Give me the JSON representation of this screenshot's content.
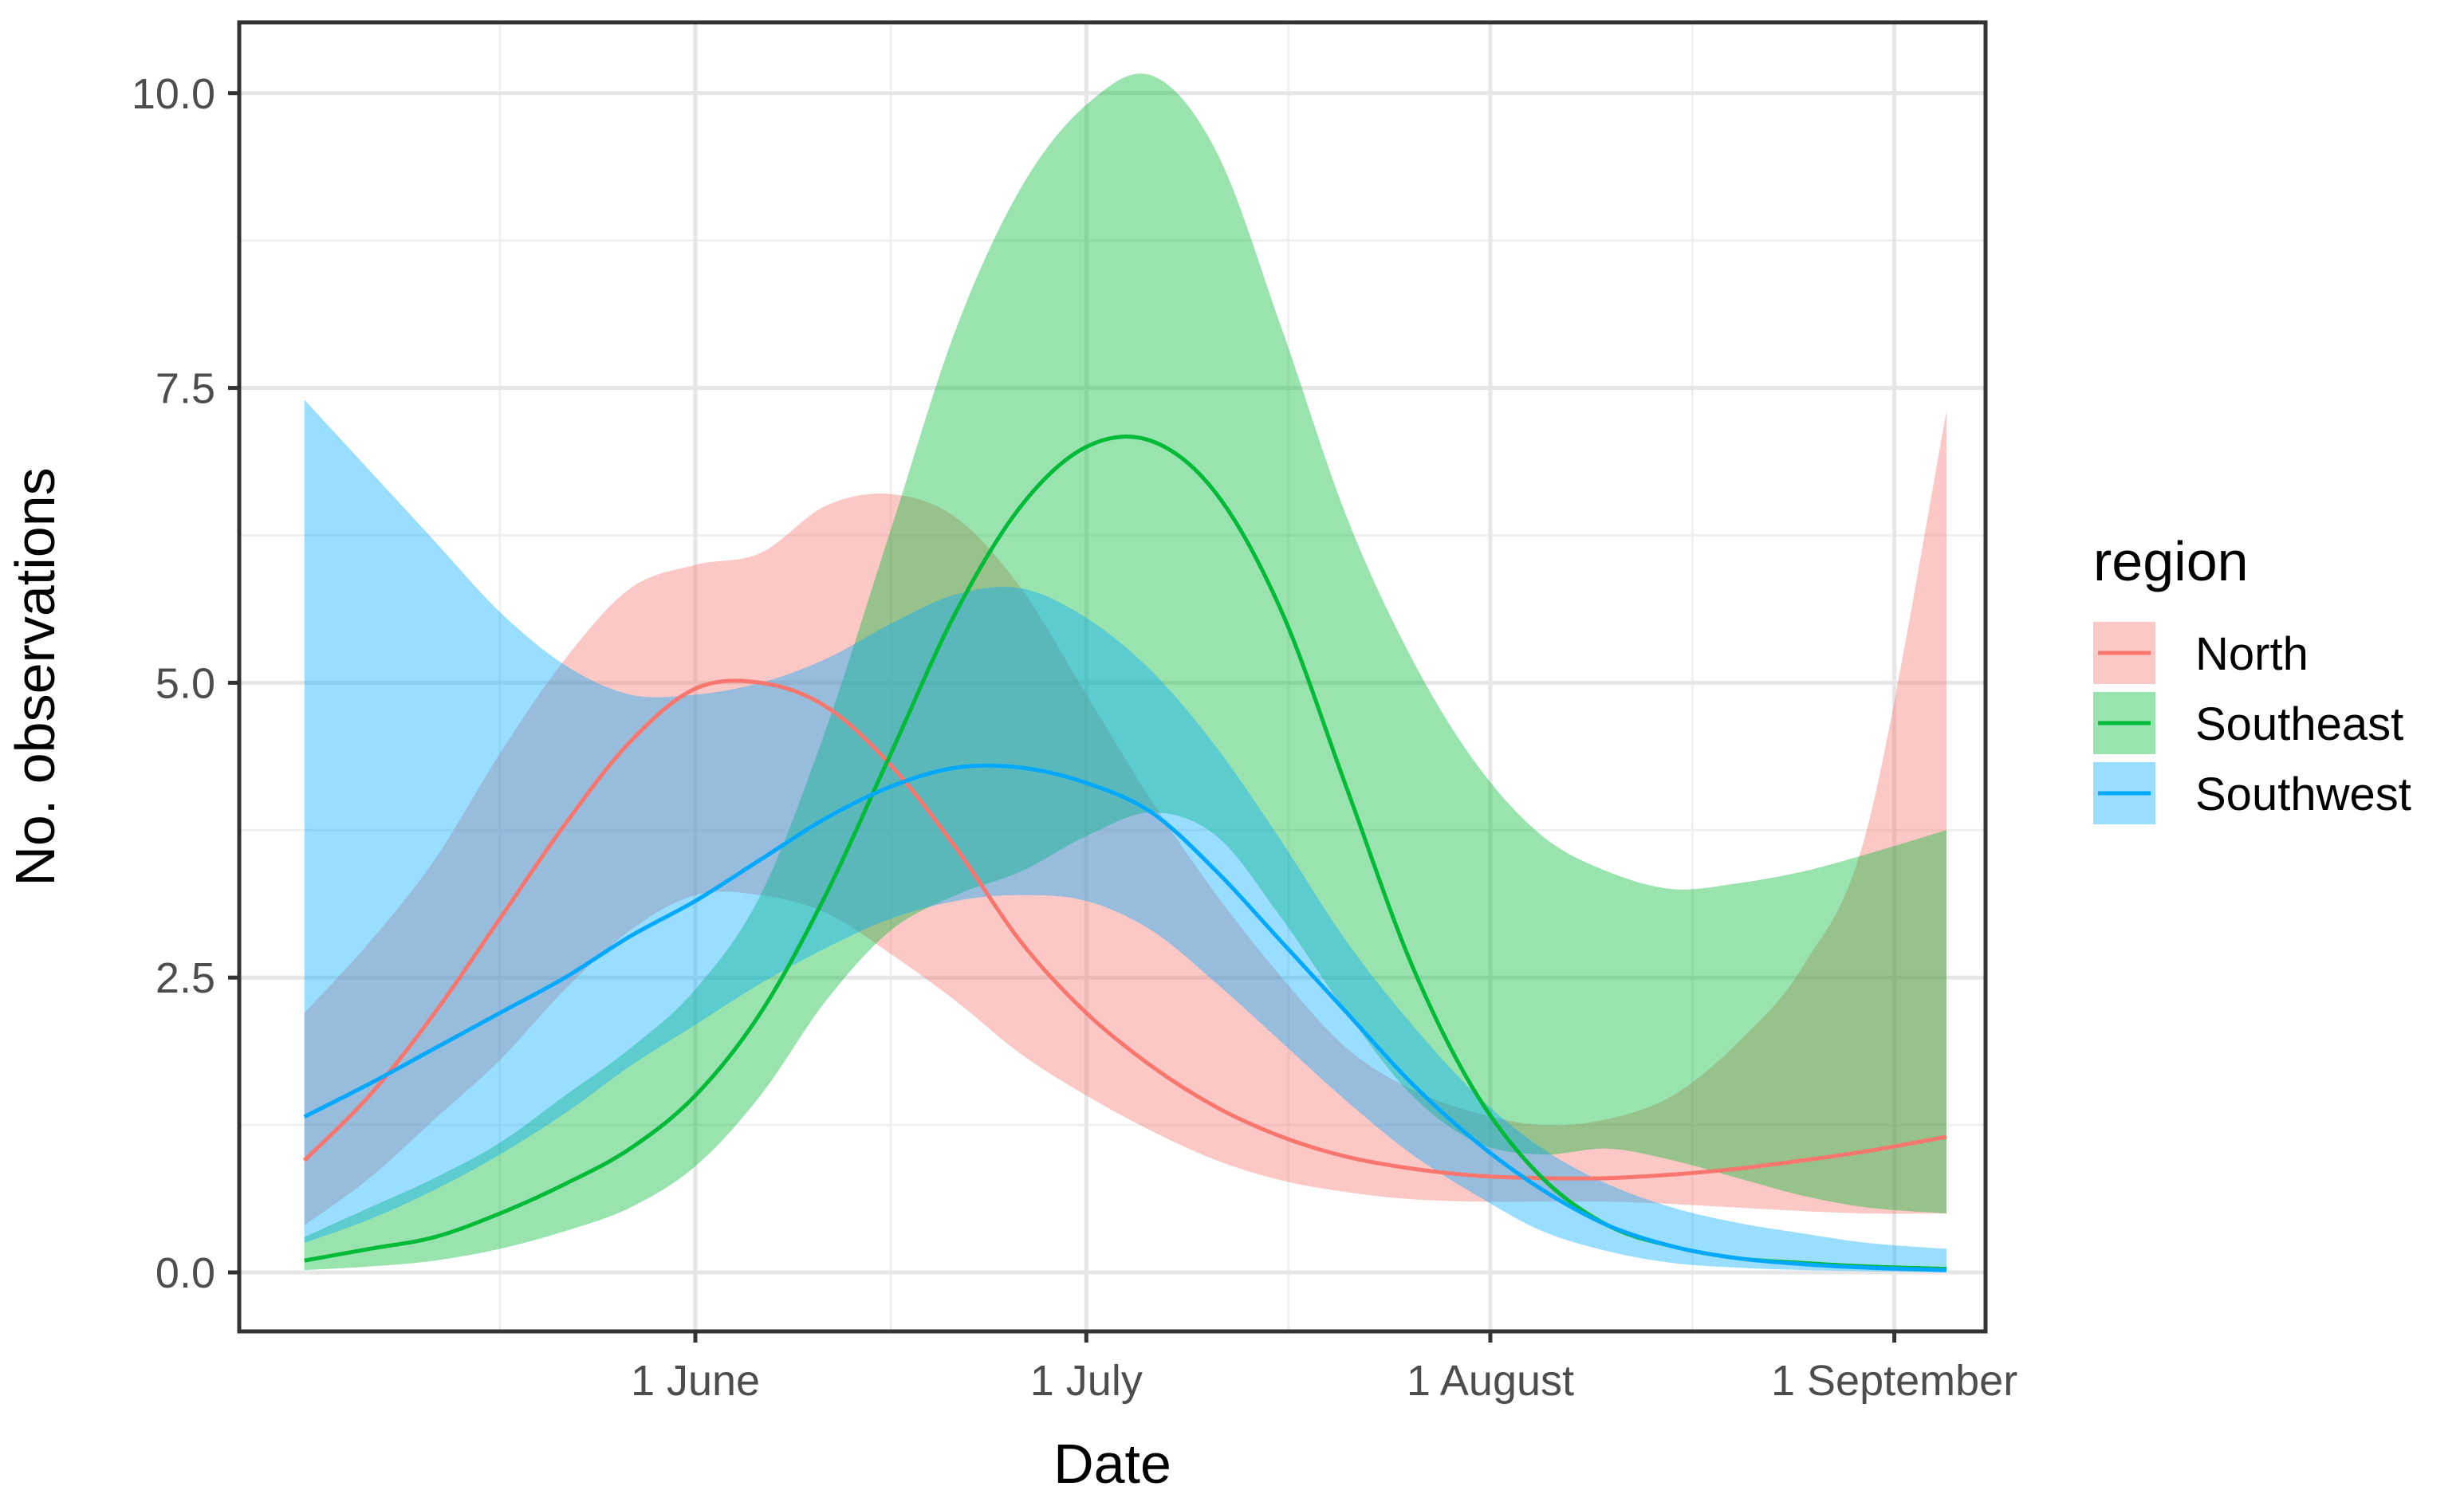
{
  "chart_data": {
    "type": "line",
    "title": "",
    "xlabel": "Date",
    "ylabel": "No. observations",
    "x_unit": "days since 1 May",
    "xlim": [
      -4,
      130
    ],
    "ylim": [
      -0.5,
      10.6
    ],
    "x_ticks": [
      {
        "value": 31,
        "label": "1 June"
      },
      {
        "value": 61,
        "label": "1 July"
      },
      {
        "value": 92,
        "label": "1 August"
      },
      {
        "value": 123,
        "label": "1 September"
      }
    ],
    "y_ticks": [
      {
        "value": 0,
        "label": "0.0"
      },
      {
        "value": 2.5,
        "label": "2.5"
      },
      {
        "value": 5,
        "label": "5.0"
      },
      {
        "value": 7.5,
        "label": "7.5"
      },
      {
        "value": 10,
        "label": "10.0"
      }
    ],
    "grid": true,
    "legend": {
      "title": "region",
      "position": "right"
    },
    "x": [
      1,
      6,
      11,
      16,
      21,
      26,
      31,
      36,
      41,
      46,
      51,
      56,
      61,
      66,
      71,
      76,
      81,
      86,
      91,
      96,
      101,
      106,
      111,
      116,
      121,
      127
    ],
    "series": [
      {
        "name": "North",
        "color": "#F8766D",
        "fill": "#F8766D",
        "values": [
          0.95,
          1.5,
          2.2,
          3.0,
          3.8,
          4.5,
          4.95,
          5.0,
          4.8,
          4.3,
          3.6,
          2.8,
          2.2,
          1.75,
          1.4,
          1.15,
          0.98,
          0.88,
          0.82,
          0.8,
          0.8,
          0.83,
          0.88,
          0.95,
          1.03,
          1.15
        ],
        "lower": [
          0.4,
          0.8,
          1.3,
          1.8,
          2.4,
          2.9,
          3.2,
          3.2,
          3.05,
          2.7,
          2.3,
          1.85,
          1.5,
          1.2,
          0.95,
          0.78,
          0.68,
          0.62,
          0.6,
          0.6,
          0.6,
          0.58,
          0.55,
          0.52,
          0.5,
          0.5
        ],
        "upper": [
          2.2,
          2.8,
          3.5,
          4.4,
          5.2,
          5.8,
          6.0,
          6.1,
          6.5,
          6.6,
          6.4,
          5.8,
          4.9,
          4.0,
          3.2,
          2.5,
          1.9,
          1.55,
          1.35,
          1.25,
          1.3,
          1.5,
          1.95,
          2.6,
          3.8,
          7.3
        ]
      },
      {
        "name": "Southeast",
        "color": "#00BA38",
        "fill": "#00BA38",
        "values": [
          0.1,
          0.2,
          0.3,
          0.5,
          0.75,
          1.05,
          1.5,
          2.2,
          3.2,
          4.4,
          5.6,
          6.5,
          7.0,
          7.05,
          6.6,
          5.6,
          4.1,
          2.6,
          1.5,
          0.8,
          0.4,
          0.22,
          0.12,
          0.08,
          0.05,
          0.03
        ],
        "lower": [
          0.02,
          0.05,
          0.1,
          0.2,
          0.35,
          0.55,
          0.9,
          1.5,
          2.3,
          2.9,
          3.2,
          3.4,
          3.7,
          3.9,
          3.7,
          3.0,
          2.2,
          1.5,
          1.1,
          1.0,
          1.05,
          0.95,
          0.8,
          0.65,
          0.55,
          0.5
        ],
        "upper": [
          0.3,
          0.55,
          0.8,
          1.1,
          1.5,
          1.9,
          2.4,
          3.2,
          4.6,
          6.3,
          8.0,
          9.2,
          9.9,
          10.15,
          9.5,
          8.0,
          6.4,
          5.2,
          4.3,
          3.7,
          3.4,
          3.25,
          3.3,
          3.4,
          3.55,
          3.75
        ]
      },
      {
        "name": "Southwest",
        "color": "#00A9FF",
        "fill": "#00A9FF",
        "values": [
          1.32,
          1.6,
          1.9,
          2.2,
          2.5,
          2.85,
          3.15,
          3.5,
          3.85,
          4.12,
          4.28,
          4.28,
          4.15,
          3.9,
          3.4,
          2.8,
          2.2,
          1.6,
          1.1,
          0.7,
          0.4,
          0.22,
          0.12,
          0.07,
          0.04,
          0.02
        ],
        "lower": [
          0.25,
          0.45,
          0.7,
          1.0,
          1.35,
          1.75,
          2.1,
          2.45,
          2.75,
          3.0,
          3.15,
          3.2,
          3.15,
          2.9,
          2.45,
          1.95,
          1.45,
          1.0,
          0.65,
          0.35,
          0.18,
          0.08,
          0.04,
          0.02,
          0.01,
          0.0
        ],
        "upper": [
          7.4,
          6.8,
          6.2,
          5.6,
          5.15,
          4.9,
          4.9,
          5.0,
          5.2,
          5.5,
          5.75,
          5.8,
          5.55,
          5.1,
          4.45,
          3.65,
          2.8,
          2.1,
          1.5,
          1.05,
          0.75,
          0.55,
          0.42,
          0.33,
          0.25,
          0.2
        ]
      }
    ]
  }
}
